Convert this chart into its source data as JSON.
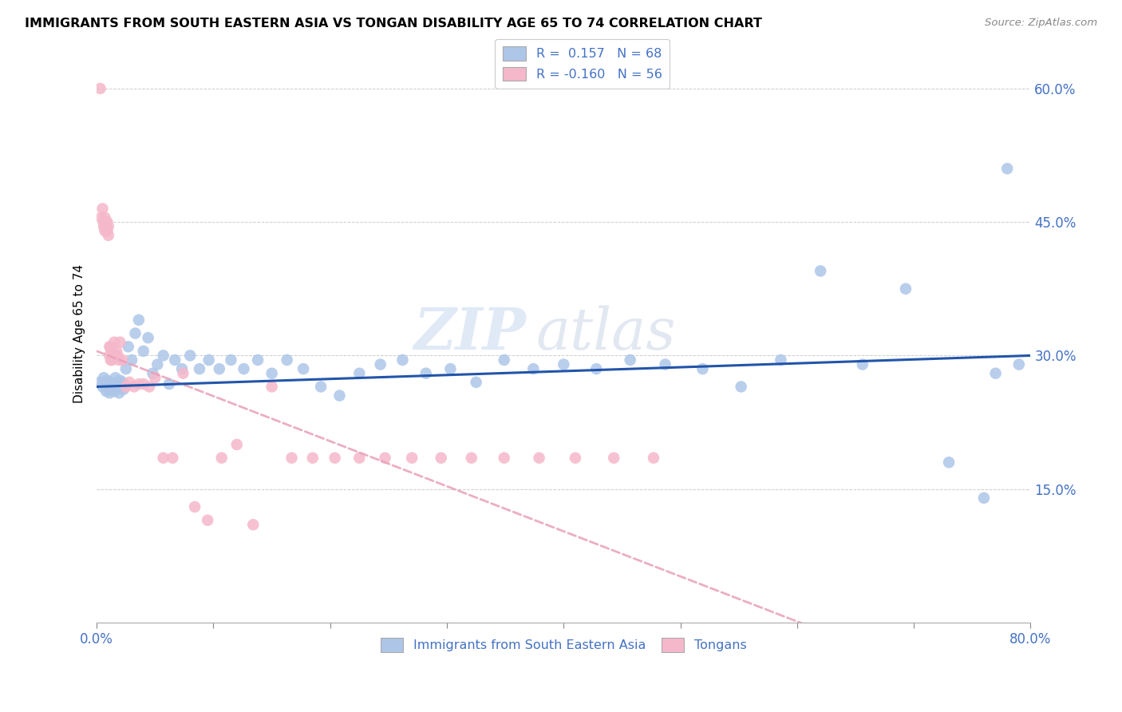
{
  "title": "IMMIGRANTS FROM SOUTH EASTERN ASIA VS TONGAN DISABILITY AGE 65 TO 74 CORRELATION CHART",
  "source": "Source: ZipAtlas.com",
  "ylabel": "Disability Age 65 to 74",
  "xlim": [
    0.0,
    0.8
  ],
  "ylim": [
    0.0,
    0.65
  ],
  "ytick_positions": [
    0.15,
    0.3,
    0.45,
    0.6
  ],
  "ytick_labels": [
    "15.0%",
    "30.0%",
    "45.0%",
    "60.0%"
  ],
  "color_blue": "#adc6e8",
  "color_pink": "#f5b8cb",
  "trendline_blue": "#2255aa",
  "trendline_pink": "#e8a0b8",
  "watermark_zip": "ZIP",
  "watermark_atlas": "atlas",
  "blue_x": [
    0.003,
    0.005,
    0.006,
    0.007,
    0.008,
    0.009,
    0.01,
    0.011,
    0.012,
    0.013,
    0.014,
    0.015,
    0.016,
    0.017,
    0.018,
    0.019,
    0.02,
    0.021,
    0.022,
    0.023,
    0.025,
    0.027,
    0.03,
    0.033,
    0.036,
    0.04,
    0.044,
    0.048,
    0.052,
    0.057,
    0.062,
    0.067,
    0.073,
    0.08,
    0.088,
    0.096,
    0.105,
    0.115,
    0.126,
    0.138,
    0.15,
    0.163,
    0.177,
    0.192,
    0.208,
    0.225,
    0.243,
    0.262,
    0.282,
    0.303,
    0.325,
    0.349,
    0.374,
    0.4,
    0.428,
    0.457,
    0.487,
    0.519,
    0.552,
    0.586,
    0.62,
    0.656,
    0.693,
    0.73,
    0.76,
    0.77,
    0.78,
    0.79
  ],
  "blue_y": [
    0.27,
    0.265,
    0.275,
    0.268,
    0.26,
    0.272,
    0.265,
    0.258,
    0.27,
    0.262,
    0.268,
    0.26,
    0.275,
    0.268,
    0.265,
    0.258,
    0.272,
    0.265,
    0.27,
    0.262,
    0.285,
    0.31,
    0.295,
    0.325,
    0.34,
    0.305,
    0.32,
    0.28,
    0.29,
    0.3,
    0.268,
    0.295,
    0.285,
    0.3,
    0.285,
    0.295,
    0.285,
    0.295,
    0.285,
    0.295,
    0.28,
    0.295,
    0.285,
    0.265,
    0.255,
    0.28,
    0.29,
    0.295,
    0.28,
    0.285,
    0.27,
    0.295,
    0.285,
    0.29,
    0.285,
    0.295,
    0.29,
    0.285,
    0.265,
    0.295,
    0.395,
    0.29,
    0.375,
    0.18,
    0.14,
    0.28,
    0.51,
    0.29
  ],
  "pink_x": [
    0.003,
    0.004,
    0.005,
    0.006,
    0.006,
    0.007,
    0.007,
    0.008,
    0.008,
    0.009,
    0.009,
    0.01,
    0.01,
    0.011,
    0.011,
    0.012,
    0.012,
    0.013,
    0.013,
    0.014,
    0.015,
    0.016,
    0.017,
    0.018,
    0.019,
    0.02,
    0.022,
    0.025,
    0.028,
    0.032,
    0.036,
    0.04,
    0.045,
    0.05,
    0.057,
    0.065,
    0.074,
    0.084,
    0.095,
    0.107,
    0.12,
    0.134,
    0.15,
    0.167,
    0.185,
    0.204,
    0.225,
    0.247,
    0.27,
    0.295,
    0.321,
    0.349,
    0.379,
    0.41,
    0.443,
    0.477
  ],
  "pink_y": [
    0.6,
    0.455,
    0.465,
    0.45,
    0.445,
    0.44,
    0.455,
    0.45,
    0.445,
    0.44,
    0.45,
    0.435,
    0.445,
    0.31,
    0.3,
    0.295,
    0.31,
    0.305,
    0.295,
    0.3,
    0.315,
    0.3,
    0.305,
    0.3,
    0.295,
    0.315,
    0.295,
    0.265,
    0.27,
    0.265,
    0.268,
    0.268,
    0.265,
    0.275,
    0.185,
    0.185,
    0.28,
    0.13,
    0.115,
    0.185,
    0.2,
    0.11,
    0.265,
    0.185,
    0.185,
    0.185,
    0.185,
    0.185,
    0.185,
    0.185,
    0.185,
    0.185,
    0.185,
    0.185,
    0.185,
    0.185
  ]
}
